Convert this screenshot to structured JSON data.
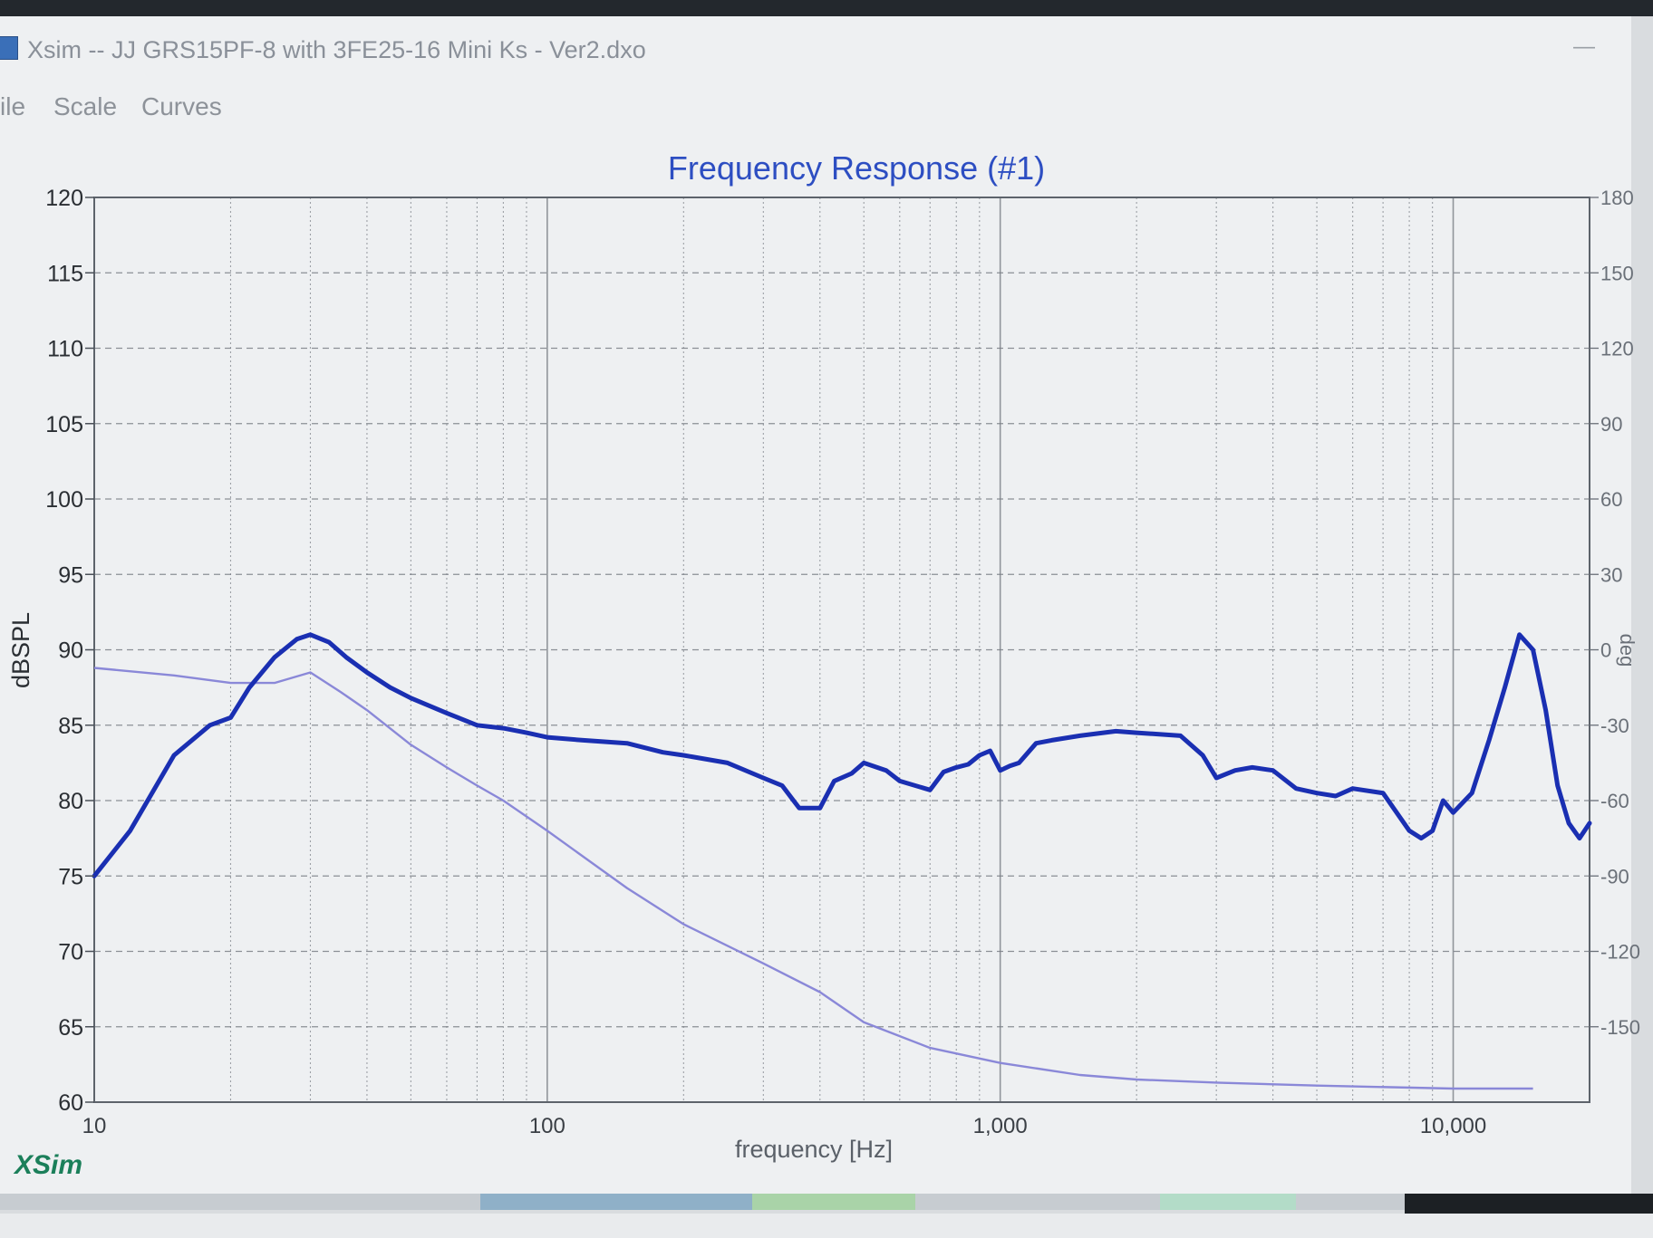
{
  "window": {
    "title": "Xsim -- JJ GRS15PF-8 with 3FE25-16 Mini Ks - Ver2.dxo",
    "minimize_glyph": "—",
    "icon": "app-icon"
  },
  "menu": {
    "items": [
      "ile",
      "Scale",
      "Curves"
    ]
  },
  "brand": "XSim",
  "colors": {
    "title": "#2d4ec2",
    "spl_curve": "#1a2fb2",
    "second_curve": "#8a88d8",
    "brand": "#1b7f5a",
    "grid": "#7a7f86"
  },
  "chart_data": {
    "type": "line",
    "title": "Frequency Response (#1)",
    "xlabel": "frequency [Hz]",
    "ylabel": "dBSPL",
    "y2label": "deg",
    "x_scale": "log",
    "xlim": [
      10,
      20000
    ],
    "ylim": [
      60,
      120
    ],
    "y2lim": [
      -180,
      180
    ],
    "x_ticks": [
      10,
      100,
      1000,
      10000
    ],
    "x_tick_labels": [
      "10",
      "100",
      "1,000",
      "10,000"
    ],
    "y_ticks": [
      60,
      65,
      70,
      75,
      80,
      85,
      90,
      95,
      100,
      105,
      110,
      115,
      120
    ],
    "y2_ticks": [
      -150,
      -120,
      -90,
      -60,
      -30,
      0,
      30,
      60,
      90,
      120,
      150,
      180
    ],
    "grid": true,
    "series": [
      {
        "name": "",
        "style": "thick",
        "x": [
          10,
          12,
          15,
          18,
          20,
          22,
          25,
          28,
          30,
          33,
          36,
          40,
          45,
          50,
          60,
          70,
          80,
          90,
          100,
          120,
          150,
          180,
          200,
          250,
          300,
          330,
          360,
          400,
          430,
          470,
          500,
          560,
          600,
          700,
          750,
          800,
          850,
          900,
          950,
          1000,
          1050,
          1100,
          1200,
          1300,
          1500,
          1800,
          2000,
          2500,
          2800,
          3000,
          3300,
          3600,
          4000,
          4500,
          5000,
          5500,
          6000,
          7000,
          8000,
          8500,
          9000,
          9500,
          10000,
          11000,
          12000,
          13000,
          14000,
          15000,
          16000,
          17000,
          18000,
          19000,
          20000
        ],
        "y": [
          75,
          78,
          83,
          85,
          85.5,
          87.5,
          89.5,
          90.7,
          91,
          90.5,
          89.5,
          88.5,
          87.5,
          86.8,
          85.8,
          85,
          84.8,
          84.5,
          84.2,
          84,
          83.8,
          83.2,
          83,
          82.5,
          81.5,
          81,
          79.5,
          79.5,
          81.3,
          81.8,
          82.5,
          82,
          81.3,
          80.7,
          81.9,
          82.2,
          82.4,
          83,
          83.3,
          82,
          82.3,
          82.5,
          83.8,
          84,
          84.3,
          84.6,
          84.5,
          84.3,
          83,
          81.5,
          82,
          82.2,
          82,
          80.8,
          80.5,
          80.3,
          80.8,
          80.5,
          78,
          77.5,
          78,
          80,
          79.2,
          80.5,
          84,
          87.5,
          91,
          90,
          86,
          81,
          78.5,
          77.5,
          78.5
        ]
      },
      {
        "name": "",
        "style": "thin",
        "x": [
          10,
          15,
          20,
          25,
          30,
          35,
          40,
          50,
          60,
          70,
          80,
          100,
          150,
          200,
          300,
          400,
          500,
          700,
          1000,
          1500,
          2000,
          3000,
          5000,
          10000,
          15000
        ],
        "y": [
          88.8,
          88.3,
          87.8,
          87.8,
          88.5,
          87.2,
          86,
          83.7,
          82.2,
          81,
          80,
          78,
          74.2,
          71.8,
          69.2,
          67.3,
          65.3,
          63.6,
          62.6,
          61.8,
          61.5,
          61.3,
          61.1,
          60.9,
          60.9
        ]
      }
    ]
  }
}
